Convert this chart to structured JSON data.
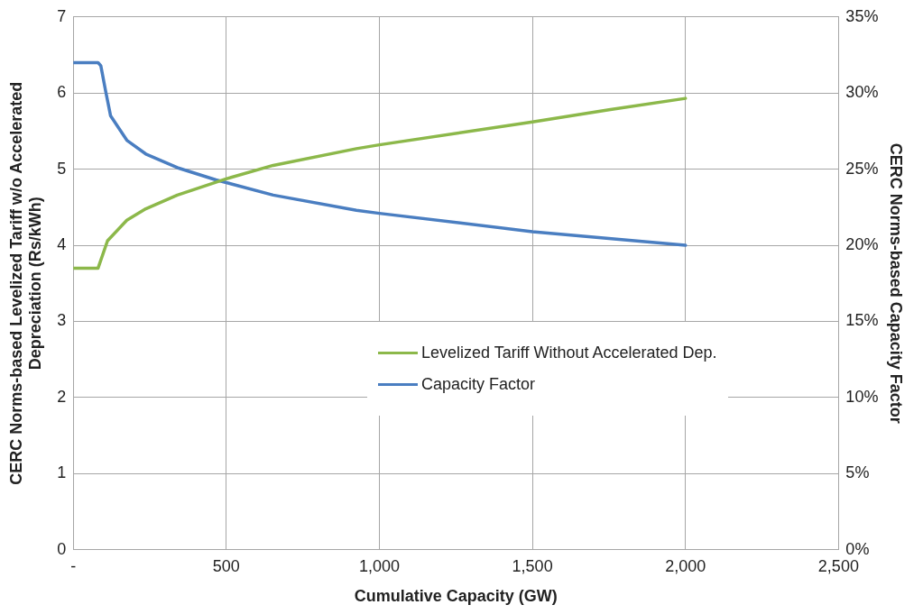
{
  "chart_data": {
    "type": "line",
    "xlabel": "Cumulative Capacity (GW)",
    "ylabel": "CERC Norms-based Levelized Tariff w/o Accelerated\nDepreciation (Rs/kWh)",
    "y2label": "CERC Norms-based Capacity Factor",
    "xlim": [
      0,
      2500
    ],
    "xticks": [
      {
        "value": 0,
        "label": "-"
      },
      500,
      {
        "value": 1000,
        "label": "1,000"
      },
      {
        "value": 1500,
        "label": "1,500"
      },
      {
        "value": 2000,
        "label": "2,000"
      },
      {
        "value": 2500,
        "label": "2,500"
      }
    ],
    "ylim": [
      0,
      7
    ],
    "yticks": [
      0,
      1,
      2,
      3,
      4,
      5,
      6,
      7
    ],
    "y2lim": [
      0,
      35
    ],
    "y2ticks": [
      {
        "value": 0,
        "label": "0%"
      },
      {
        "value": 5,
        "label": "5%"
      },
      {
        "value": 10,
        "label": "10%"
      },
      {
        "value": 15,
        "label": "15%"
      },
      {
        "value": 20,
        "label": "20%"
      },
      {
        "value": 25,
        "label": "25%"
      },
      {
        "value": 30,
        "label": "30%"
      },
      {
        "value": 35,
        "label": "35%"
      }
    ],
    "grid": true,
    "legend": "center",
    "marker": "none",
    "line_style": "solid",
    "series": [
      {
        "name": "Levelized Tariff Without Accelerated Dep.",
        "color": "#8cb84a",
        "x": [
          0,
          81,
          112,
          175,
          237,
          340,
          497,
          653,
          925,
          1000,
          1500,
          1750,
          2000
        ],
        "values": [
          3.7,
          3.7,
          4.06,
          4.33,
          4.48,
          4.66,
          4.87,
          5.05,
          5.27,
          5.32,
          5.62,
          5.78,
          5.93
        ]
      },
      {
        "name": "Capacity Factor",
        "color": "#4a7ec1",
        "axis": "y2",
        "x": [
          0,
          81,
          90,
          106,
          122,
          175,
          237,
          340,
          466,
          653,
          925,
          1000,
          1500,
          2000
        ],
        "values": [
          32,
          32,
          31.8,
          30.1,
          28.5,
          26.9,
          26,
          25.1,
          24.3,
          23.3,
          22.3,
          22.1,
          20.9,
          20
        ]
      }
    ]
  }
}
